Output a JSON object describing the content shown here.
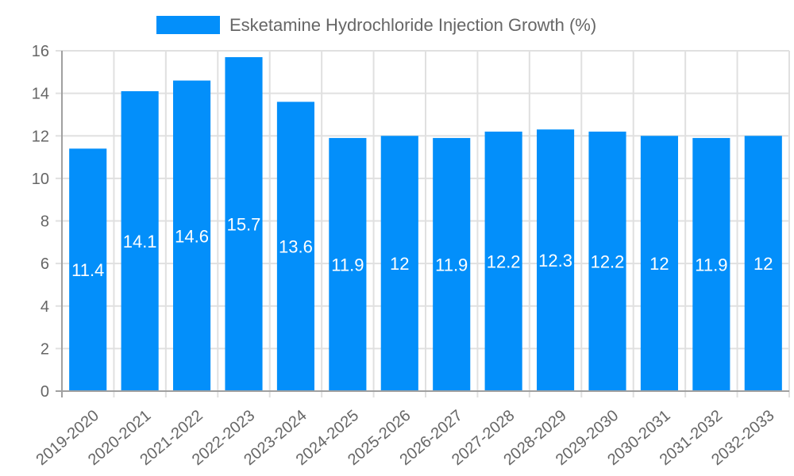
{
  "legend": {
    "label": "Esketamine Hydrochloride Injection Growth (%)",
    "color": "#038ffa"
  },
  "chart_data": {
    "type": "bar",
    "title": "",
    "xlabel": "",
    "ylabel": "",
    "legend_position": "top",
    "grid": true,
    "ylim": [
      0,
      16
    ],
    "yticks": [
      0,
      2,
      4,
      6,
      8,
      10,
      12,
      14,
      16
    ],
    "categories": [
      "2019-2020",
      "2020-2021",
      "2021-2022",
      "2022-2023",
      "2023-2024",
      "2024-2025",
      "2025-2026",
      "2026-2027",
      "2027-2028",
      "2028-2029",
      "2029-2030",
      "2030-2031",
      "2031-2032",
      "2032-2033"
    ],
    "series": [
      {
        "name": "Esketamine Hydrochloride Injection Growth (%)",
        "color": "#038ffa",
        "values": [
          11.4,
          14.1,
          14.6,
          15.7,
          13.6,
          11.9,
          12,
          11.9,
          12.2,
          12.3,
          12.2,
          12,
          11.9,
          12
        ]
      }
    ]
  }
}
